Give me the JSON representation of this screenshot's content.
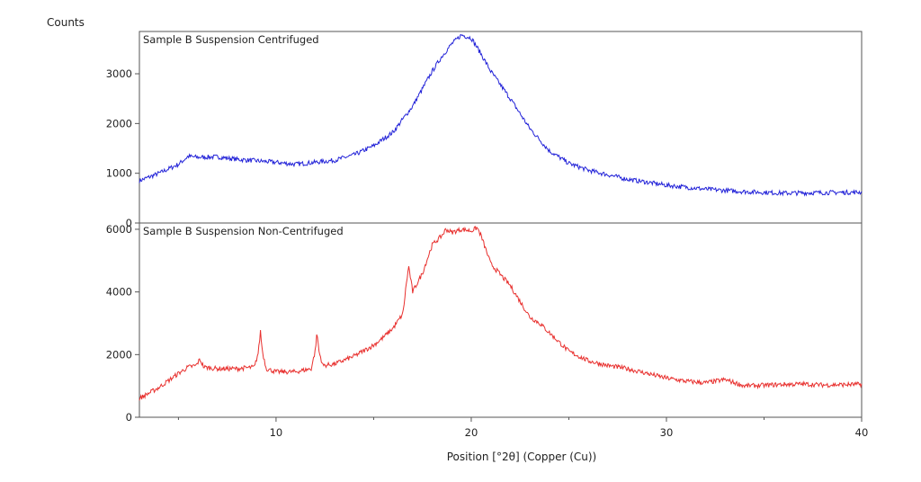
{
  "chart_data": {
    "type": "line",
    "ylabel": "Counts",
    "xlabel": "Position [°2θ] (Copper (Cu))",
    "xlim": [
      3,
      40
    ],
    "x_ticks": [
      "10",
      "20",
      "30",
      "40"
    ],
    "grid": false,
    "panels": [
      {
        "title": "Sample B Suspension Centrifuged",
        "color": "#2323d8",
        "ylim": [
          0,
          3850
        ],
        "y_ticks": [
          "0",
          "1000",
          "2000",
          "3000"
        ],
        "series": [
          {
            "x": [
              3,
              4,
              5,
              5.5,
              6,
              7,
              8,
              9,
              10,
              11,
              12,
              13,
              14,
              15,
              16,
              17,
              17.5,
              18,
              18.5,
              19,
              19.5,
              20,
              20.5,
              21,
              22,
              23,
              24,
              25,
              26,
              28,
              30,
              32,
              34,
              36,
              38,
              40
            ],
            "y": [
              850,
              1000,
              1180,
              1340,
              1320,
              1330,
              1280,
              1250,
              1220,
              1180,
              1220,
              1260,
              1370,
              1550,
              1830,
              2350,
              2700,
              3050,
              3350,
              3600,
              3780,
              3720,
              3400,
              3050,
              2500,
              1900,
              1450,
              1200,
              1060,
              880,
              760,
              680,
              630,
              600,
              610,
              620
            ]
          }
        ]
      },
      {
        "title": "Sample B Suspension Non-Centrifuged",
        "color": "#e8302e",
        "ylim": [
          0,
          6200
        ],
        "y_ticks": [
          "0",
          "2000",
          "4000",
          "6000"
        ],
        "series": [
          {
            "x": [
              3,
              4,
              5,
              5.5,
              5.9,
              6.1,
              6.3,
              7,
              8,
              8.9,
              9.1,
              9.2,
              9.3,
              9.5,
              10,
              11,
              11.8,
              12,
              12.1,
              12.2,
              12.4,
              13,
              14,
              15,
              15.5,
              16,
              16.5,
              16.7,
              16.8,
              17,
              17.5,
              18,
              18.5,
              18.7,
              19,
              19.5,
              20,
              20.3,
              20.5,
              21,
              22,
              23,
              23.5,
              24,
              25,
              26,
              27,
              28,
              29,
              30,
              31,
              32,
              33,
              34,
              35,
              36,
              37,
              38,
              39,
              40
            ],
            "y": [
              600,
              950,
              1400,
              1600,
              1650,
              1850,
              1600,
              1550,
              1550,
              1600,
              2100,
              2750,
              2100,
              1550,
              1450,
              1450,
              1550,
              2100,
              2700,
              2100,
              1650,
              1700,
              1950,
              2300,
              2550,
              2850,
              3300,
              4400,
              4800,
              4000,
              4600,
              5500,
              5800,
              6000,
              5900,
              6000,
              5950,
              6050,
              5800,
              4900,
              4200,
              3200,
              3000,
              2700,
              2100,
              1800,
              1650,
              1550,
              1400,
              1250,
              1150,
              1100,
              1200,
              1000,
              1020,
              1050,
              1060,
              1030,
              1040,
              1050
            ]
          }
        ]
      }
    ]
  }
}
